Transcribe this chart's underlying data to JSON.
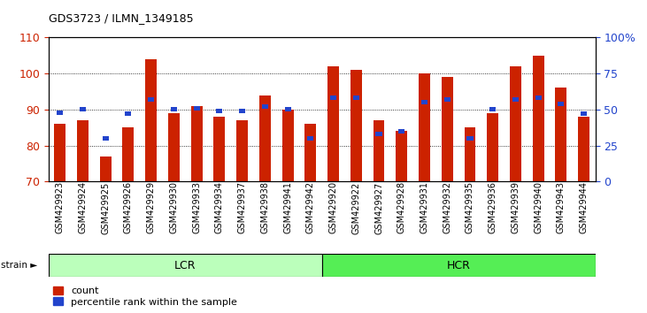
{
  "title": "GDS3723 / ILMN_1349185",
  "samples": [
    "GSM429923",
    "GSM429924",
    "GSM429925",
    "GSM429926",
    "GSM429929",
    "GSM429930",
    "GSM429933",
    "GSM429934",
    "GSM429937",
    "GSM429938",
    "GSM429941",
    "GSM429942",
    "GSM429920",
    "GSM429922",
    "GSM429927",
    "GSM429928",
    "GSM429931",
    "GSM429932",
    "GSM429935",
    "GSM429936",
    "GSM429939",
    "GSM429940",
    "GSM429943",
    "GSM429944"
  ],
  "red_values": [
    86,
    87,
    77,
    85,
    104,
    89,
    91,
    88,
    87,
    94,
    90,
    86,
    102,
    101,
    87,
    84,
    100,
    99,
    85,
    89,
    102,
    105,
    96,
    88
  ],
  "blue_values": [
    48,
    50,
    30,
    47,
    57,
    50,
    51,
    49,
    49,
    52,
    50,
    30,
    58,
    58,
    33,
    35,
    55,
    57,
    30,
    50,
    57,
    58,
    54,
    47
  ],
  "lcr_count": 12,
  "hcr_count": 12,
  "group_labels": [
    "LCR",
    "HCR"
  ],
  "lcr_color": "#bbffbb",
  "hcr_color": "#55ee55",
  "ylim_left": [
    70,
    110
  ],
  "ylim_right": [
    0,
    100
  ],
  "right_ticks": [
    0,
    25,
    50,
    75,
    100
  ],
  "right_tick_labels": [
    "0",
    "25",
    "50",
    "75",
    "100%"
  ],
  "left_ticks": [
    70,
    80,
    90,
    100,
    110
  ],
  "bar_color_red": "#cc2200",
  "bar_color_blue": "#2244cc",
  "bar_width": 0.5,
  "background_color": "#ffffff",
  "tick_label_color_left": "#cc2200",
  "tick_label_color_right": "#2244cc",
  "legend_labels": [
    "count",
    "percentile rank within the sample"
  ]
}
